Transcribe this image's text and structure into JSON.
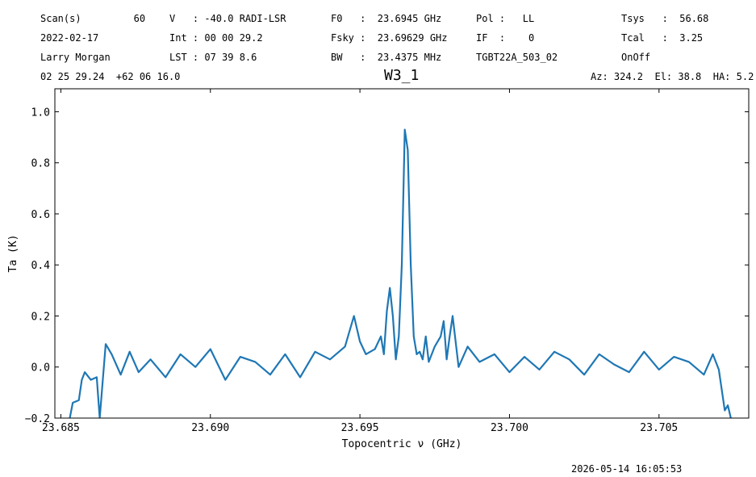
{
  "header": {
    "row1": {
      "scan": "Scan(s)         60",
      "velocity": "V   : -40.0 RADI-LSR",
      "f0": "F0   :  23.6945 GHz",
      "pol": "Pol :   LL",
      "tsys": "Tsys   :  56.68"
    },
    "row2": {
      "date": "2022-02-17",
      "int": "Int : 00 00 29.2",
      "fsky": "Fsky :  23.69629 GHz",
      "if": "IF  :    0",
      "tcal": "Tcal   :  3.25"
    },
    "row3": {
      "observer": "Larry Morgan",
      "lst": "LST : 07 39 8.6",
      "bw": "BW   :  23.4375 MHz",
      "project": "TGBT22A_503_02",
      "proc": "OnOff"
    },
    "row4": {
      "coords": "02 25 29.24  +62 06 16.0",
      "azel": "Az: 324.2  El: 38.8  HA: 5.2"
    }
  },
  "footer": {
    "timestamp": "2026-05-14 16:05:53"
  },
  "chart_data": {
    "type": "line",
    "title": "W3_1",
    "xlabel": "Topocentric ν (GHz)",
    "ylabel": "Ta (K)",
    "xlim": [
      23.6848,
      23.708
    ],
    "ylim": [
      -0.2,
      1.09
    ],
    "xticks": [
      23.685,
      23.69,
      23.695,
      23.7,
      23.705
    ],
    "xtick_labels": [
      "23.685",
      "23.690",
      "23.695",
      "23.700",
      "23.705"
    ],
    "yticks": [
      -0.2,
      0.0,
      0.2,
      0.4,
      0.6,
      0.8,
      1.0
    ],
    "ytick_labels": [
      "−0.2",
      "0.0",
      "0.2",
      "0.4",
      "0.6",
      "0.8",
      "1.0"
    ],
    "grid": false,
    "series": [
      {
        "color": "#1f77b4",
        "x": [
          23.6853,
          23.6854,
          23.6856,
          23.6857,
          23.6858,
          23.686,
          23.6862,
          23.6863,
          23.6865,
          23.6867,
          23.687,
          23.6873,
          23.6876,
          23.688,
          23.6885,
          23.689,
          23.6895,
          23.69,
          23.6905,
          23.691,
          23.6915,
          23.692,
          23.6925,
          23.693,
          23.6935,
          23.694,
          23.6945,
          23.6948,
          23.695,
          23.6952,
          23.6955,
          23.6957,
          23.6958,
          23.6959,
          23.696,
          23.6961,
          23.6962,
          23.6963,
          23.6964,
          23.6965,
          23.6966,
          23.6967,
          23.6968,
          23.6969,
          23.697,
          23.6971,
          23.6972,
          23.6973,
          23.6975,
          23.6977,
          23.6978,
          23.6979,
          23.698,
          23.6981,
          23.6983,
          23.6986,
          23.699,
          23.6995,
          23.7,
          23.7005,
          23.701,
          23.7015,
          23.702,
          23.7025,
          23.703,
          23.7035,
          23.704,
          23.7045,
          23.705,
          23.7055,
          23.706,
          23.7065,
          23.7068,
          23.707,
          23.7072,
          23.7073,
          23.7074
        ],
        "y": [
          -0.2,
          -0.14,
          -0.13,
          -0.05,
          -0.02,
          -0.05,
          -0.04,
          -0.2,
          0.09,
          0.05,
          -0.03,
          0.06,
          -0.02,
          0.03,
          -0.04,
          0.05,
          0.0,
          0.07,
          -0.05,
          0.04,
          0.02,
          -0.03,
          0.05,
          -0.04,
          0.06,
          0.03,
          0.08,
          0.2,
          0.1,
          0.05,
          0.07,
          0.12,
          0.05,
          0.22,
          0.31,
          0.2,
          0.03,
          0.12,
          0.4,
          0.93,
          0.85,
          0.4,
          0.12,
          0.05,
          0.06,
          0.03,
          0.12,
          0.02,
          0.08,
          0.12,
          0.18,
          0.03,
          0.12,
          0.2,
          0.0,
          0.08,
          0.02,
          0.05,
          -0.02,
          0.04,
          -0.01,
          0.06,
          0.03,
          -0.03,
          0.05,
          0.01,
          -0.02,
          0.06,
          -0.01,
          0.04,
          0.02,
          -0.03,
          0.05,
          -0.01,
          -0.17,
          -0.15,
          -0.2
        ]
      }
    ]
  }
}
